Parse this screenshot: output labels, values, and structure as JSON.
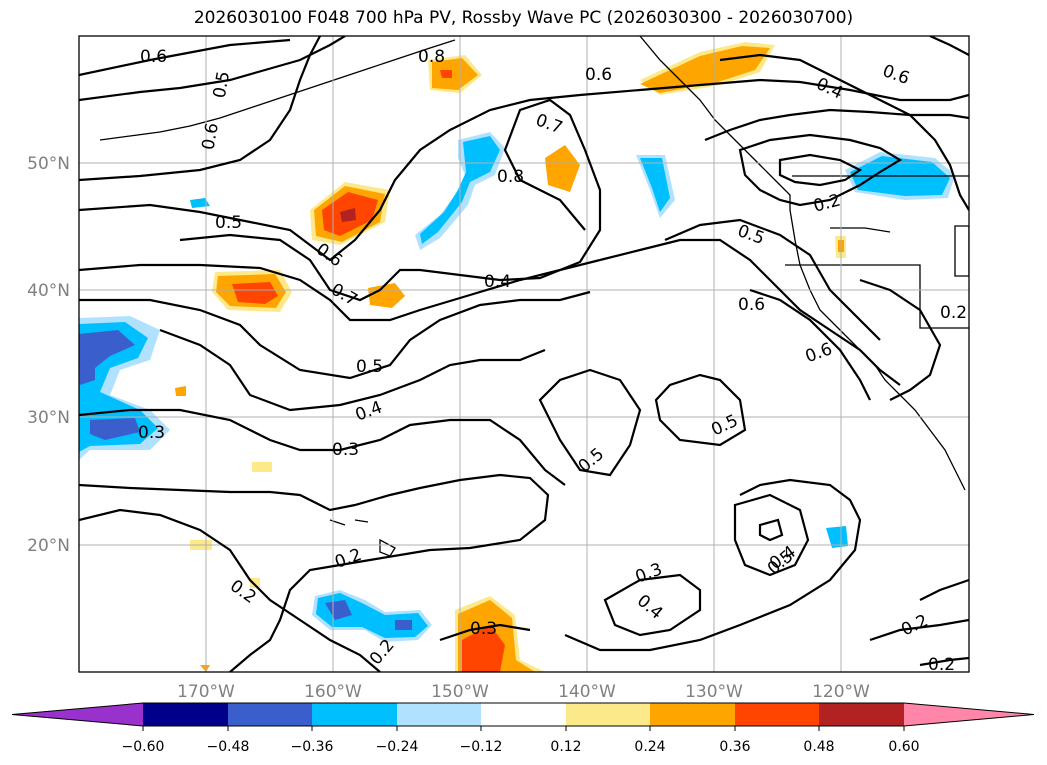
{
  "title": "2026030100 F048 700 hPa PV, Rossby Wave PC (2026030300 - 2026030700)",
  "map": {
    "lat_labels": [
      "50°N",
      "40°N",
      "30°N",
      "20°N"
    ],
    "lon_labels": [
      "170°W",
      "160°W",
      "150°W",
      "140°W",
      "130°W",
      "120°W"
    ],
    "grid": true
  },
  "contour_labels": [
    "0.6",
    "0.5",
    "0.6",
    "0.8",
    "0.6",
    "0.6",
    "0.4",
    "0.7",
    "0.8",
    "0.5",
    "0.6",
    "0.2",
    "0.5",
    "0.7",
    "0.4",
    "0.5",
    "0.6",
    "0.6",
    "0.2",
    "0.5",
    "0.4",
    "0.3",
    "0.3",
    "0.5",
    "0.5",
    "0.2",
    "0.2",
    "0.3",
    "0.4",
    "0.4",
    "0.3",
    "0.2",
    "0.2",
    "0.2"
  ],
  "colorbar": {
    "ticks": [
      "−0.60",
      "−0.48",
      "−0.36",
      "−0.24",
      "−0.12",
      "0.12",
      "0.24",
      "0.36",
      "0.48",
      "0.60"
    ],
    "colors": [
      "#9932cc",
      "#00008b",
      "#3a5fcd",
      "#00bfff",
      "#b0e2ff",
      "#ffffff",
      "#fce98a",
      "#ffa500",
      "#ff4500",
      "#b22222",
      "#ff86a8",
      "#ff86a8"
    ]
  }
}
